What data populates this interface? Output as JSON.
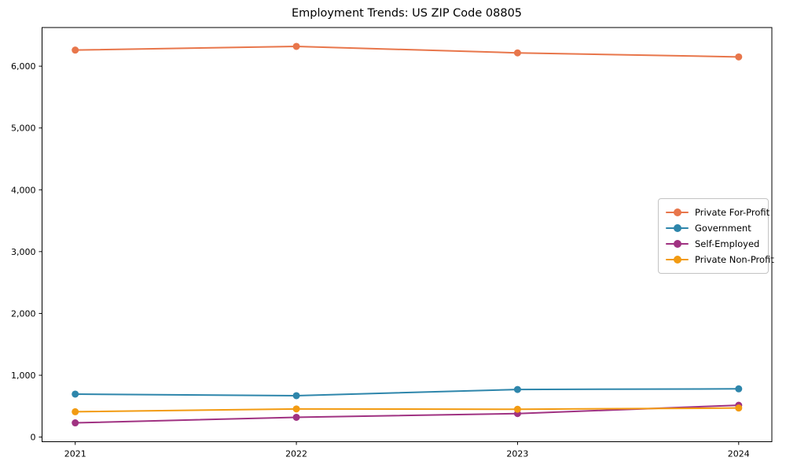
{
  "title": "Employment Trends: US ZIP Code 08805",
  "chart_data": {
    "type": "line",
    "title": "Employment Trends: US ZIP Code 08805",
    "xlabel": "",
    "ylabel": "",
    "categories": [
      "2021",
      "2022",
      "2023",
      "2024"
    ],
    "series": [
      {
        "name": "Private For-Profit",
        "color": "#E8764B",
        "values": [
          6260,
          6320,
          6215,
          6150
        ]
      },
      {
        "name": "Government",
        "color": "#2E86AB",
        "values": [
          695,
          670,
          770,
          780
        ]
      },
      {
        "name": "Self-Employed",
        "color": "#A03282",
        "values": [
          230,
          320,
          380,
          515
        ]
      },
      {
        "name": "Private Non-Profit",
        "color": "#F29B12",
        "values": [
          410,
          455,
          450,
          470
        ]
      }
    ],
    "ylim": [
      -75,
      6625
    ],
    "yticks": [
      0,
      1000,
      2000,
      3000,
      4000,
      5000,
      6000
    ],
    "ytick_labels": [
      "0",
      "1,000",
      "2,000",
      "3,000",
      "4,000",
      "5,000",
      "6,000"
    ],
    "grid": false,
    "legend_position": "center right",
    "marker": "o",
    "axis_color": "#000000"
  }
}
